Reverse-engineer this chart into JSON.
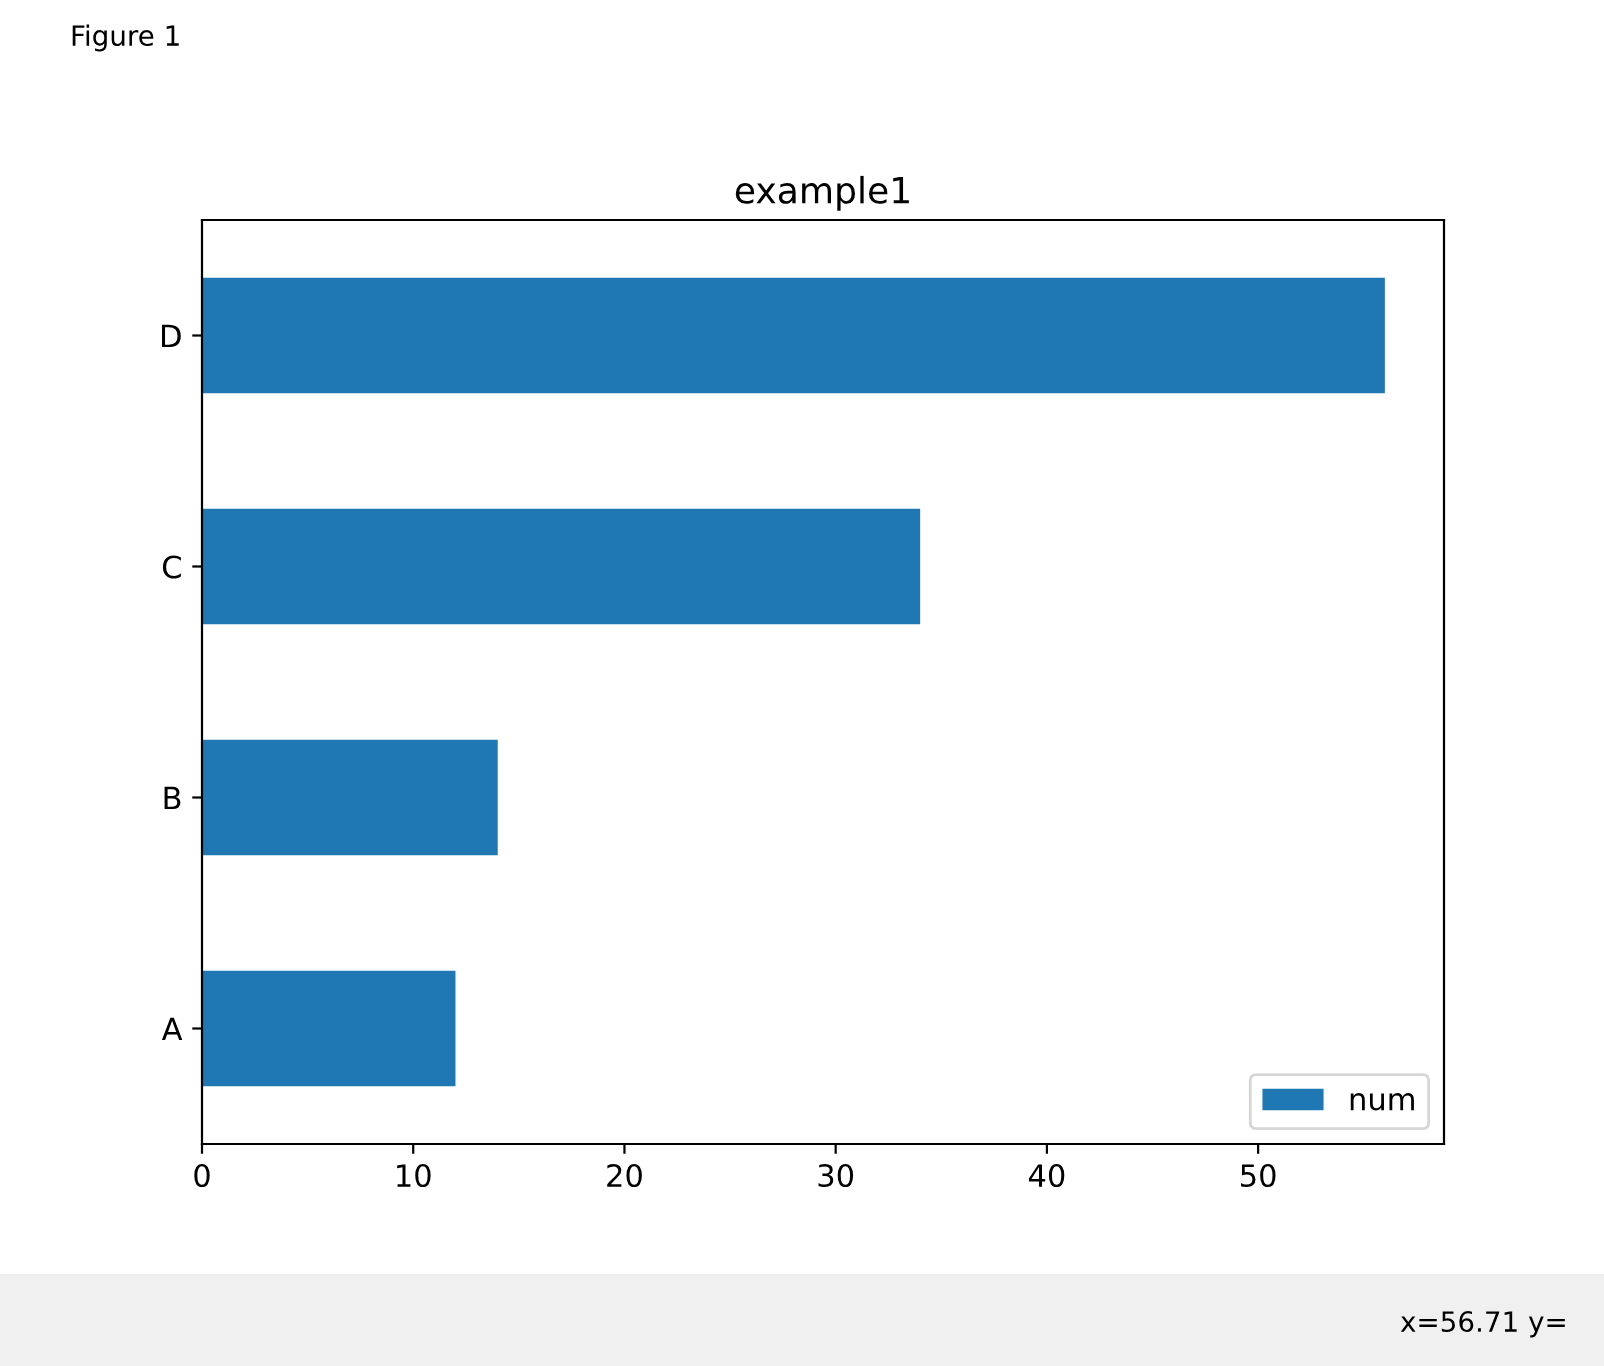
{
  "chart_data": {
    "type": "bar",
    "orientation": "horizontal",
    "title": "example1",
    "categories": [
      "D",
      "C",
      "B",
      "A"
    ],
    "series": [
      {
        "name": "num",
        "color": "#1f77b4",
        "values": [
          56,
          34,
          14,
          12
        ]
      }
    ],
    "xlim": [
      0,
      58.8
    ],
    "xticks": [
      0,
      10,
      20,
      30,
      40,
      50
    ],
    "grid": false,
    "legend": "bottom right",
    "annotations": [
      "Figure 1",
      "x=56.71 y="
    ]
  }
}
